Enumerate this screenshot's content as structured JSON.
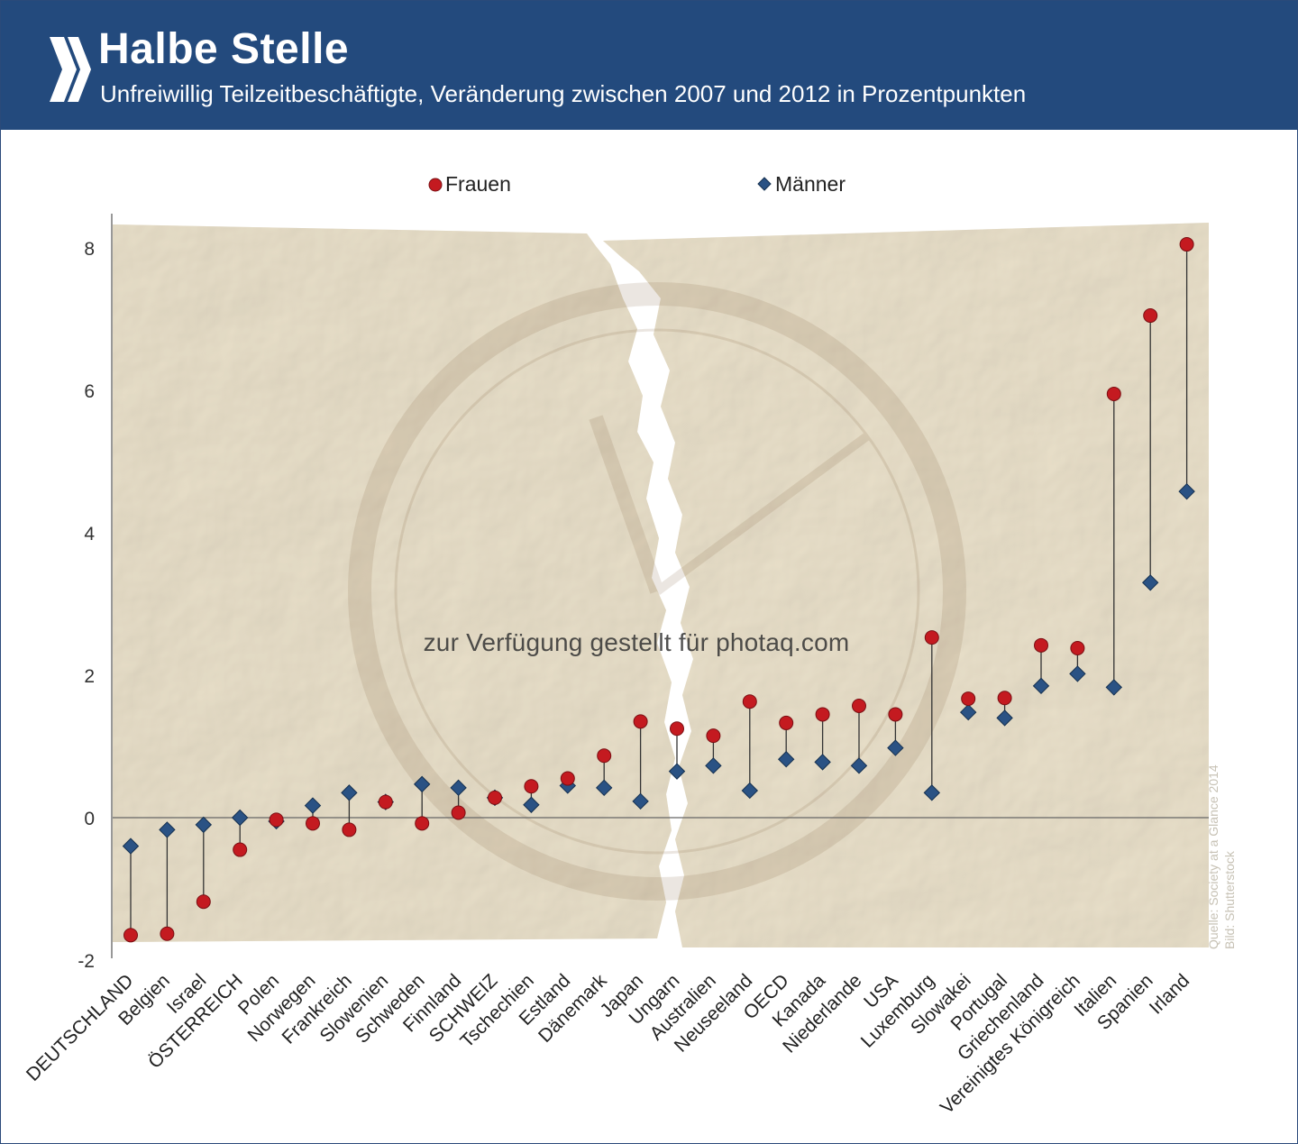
{
  "header": {
    "title": "Halbe Stelle",
    "subtitle": "Unfreiwillig Teilzeitbeschäftigte, Veränderung zwischen 2007 und 2012 in Prozentpunkten"
  },
  "watermark": "zur Verfügung gestellt für photaq.com",
  "credit": {
    "line1": "Quelle: Society at a Glance 2014",
    "line2": "Bild: Shutterstock"
  },
  "colors": {
    "header_bg": "#234a7d",
    "frauen": "#c41a20",
    "maenner": "#2a5284",
    "paper": "#e9dfc8"
  },
  "chart_data": {
    "type": "scatter",
    "title": "Halbe Stelle",
    "ylim": [
      -2,
      8
    ],
    "yticks": [
      -2,
      0,
      2,
      4,
      6,
      8
    ],
    "legend_position": "top",
    "categories": [
      "DEUTSCHLAND",
      "Belgien",
      "Israel",
      "ÖSTERREICH",
      "Polen",
      "Norwegen",
      "Frankreich",
      "Slowenien",
      "Schweden",
      "Finnland",
      "SCHWEIZ",
      "Tschechien",
      "Estland",
      "Dänemark",
      "Japan",
      "Ungarn",
      "Australien",
      "Neuseeland",
      "OECD",
      "Kanada",
      "Niederlande",
      "USA",
      "Luxemburg",
      "Slowakei",
      "Portugal",
      "Griechenland",
      "Vereinigtes Königreich",
      "Italien",
      "Spanien",
      "Irland"
    ],
    "series": [
      {
        "name": "Frauen",
        "marker": "circle",
        "values": [
          -1.65,
          -1.63,
          -1.18,
          -0.45,
          -0.03,
          -0.08,
          -0.17,
          0.22,
          -0.08,
          0.07,
          0.28,
          0.44,
          0.55,
          0.87,
          1.35,
          1.25,
          1.15,
          1.63,
          1.33,
          1.45,
          1.57,
          1.45,
          2.53,
          1.67,
          1.68,
          2.42,
          2.38,
          5.95,
          7.05,
          8.05
        ]
      },
      {
        "name": "Männer",
        "marker": "diamond",
        "values": [
          -0.4,
          -0.17,
          -0.1,
          0.0,
          -0.05,
          0.17,
          0.35,
          0.22,
          0.47,
          0.42,
          0.28,
          0.18,
          0.45,
          0.42,
          0.23,
          0.65,
          0.73,
          0.38,
          0.82,
          0.78,
          0.73,
          0.98,
          0.35,
          1.48,
          1.4,
          1.85,
          2.02,
          1.83,
          3.3,
          4.58
        ]
      }
    ]
  }
}
